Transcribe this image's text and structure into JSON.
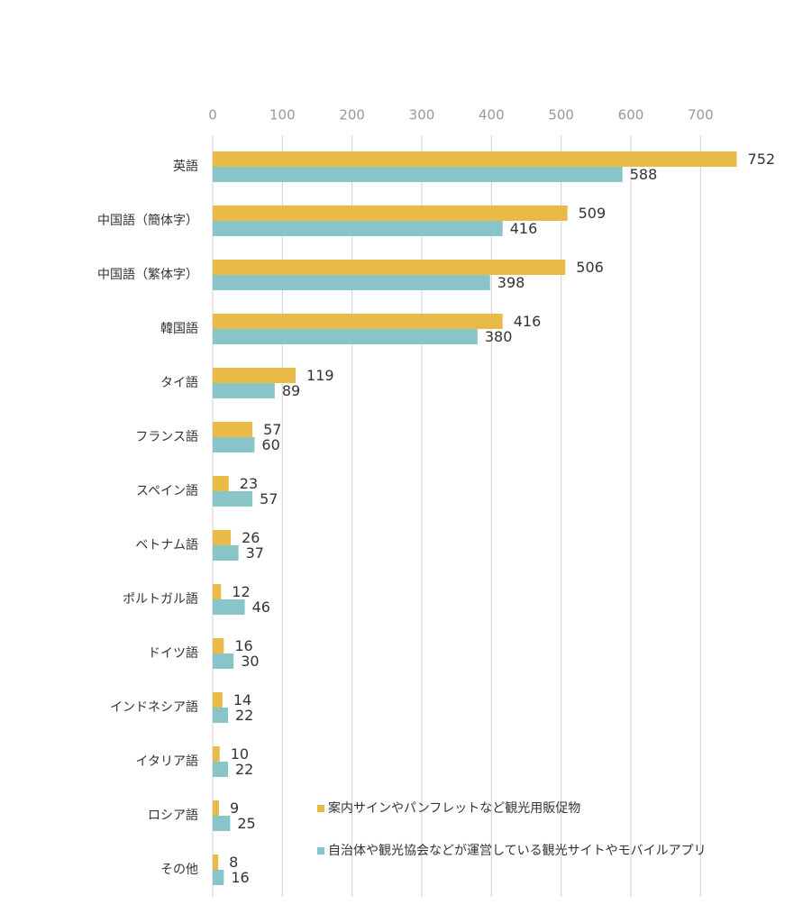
{
  "chart_data": {
    "type": "bar",
    "orientation": "horizontal",
    "categories": [
      "英語",
      "中国語（簡体字）",
      "中国語（繁体字）",
      "韓国語",
      "タイ語",
      "フランス語",
      "スペイン語",
      "ベトナム語",
      "ポルトガル語",
      "ドイツ語",
      "インドネシア語",
      "イタリア語",
      "ロシア語",
      "その他"
    ],
    "series": [
      {
        "name": "案内サインやパンフレットなど観光用販促物",
        "color": "#e8bb48",
        "values": [
          752,
          509,
          506,
          416,
          119,
          57,
          23,
          26,
          12,
          16,
          14,
          10,
          9,
          8
        ]
      },
      {
        "name": "自治体や観光協会などが運営している観光サイトやモバイルアプリ",
        "color": "#88c4c8",
        "values": [
          588,
          416,
          398,
          380,
          89,
          60,
          57,
          37,
          46,
          30,
          22,
          22,
          25,
          16
        ]
      }
    ],
    "xlim": [
      0,
      750
    ],
    "xticks": [
      0,
      100,
      200,
      300,
      400,
      500,
      600,
      700
    ],
    "grid": true
  }
}
